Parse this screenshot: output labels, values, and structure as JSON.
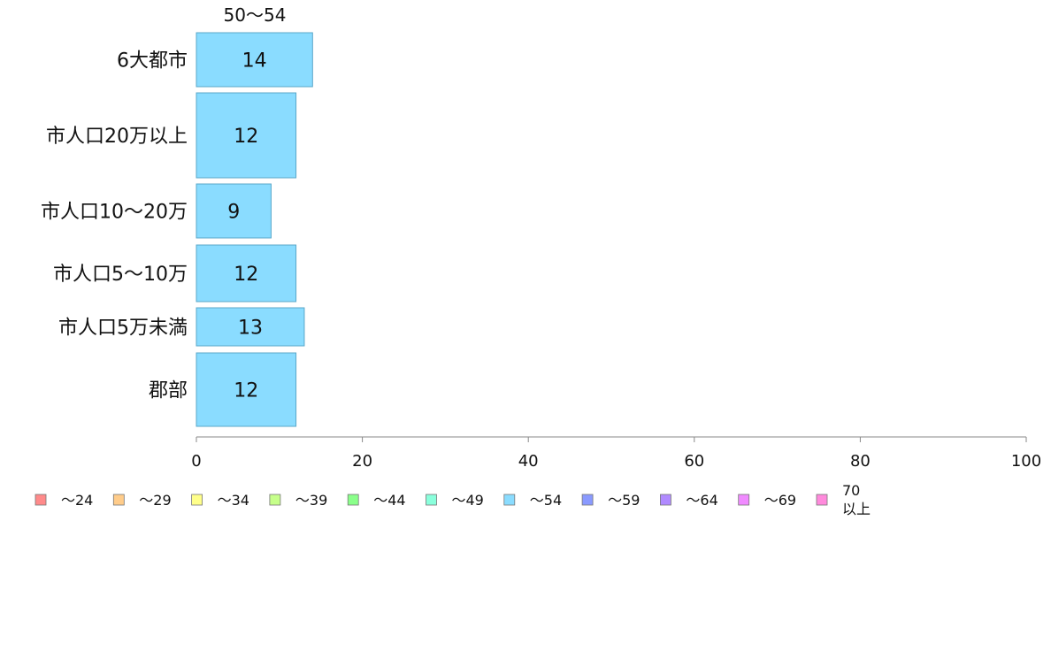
{
  "chart_data": {
    "type": "bar",
    "orientation": "horizontal",
    "title": "",
    "series_header": "50～54",
    "categories": [
      "6大都市",
      "市人口20万以上",
      "市人口10～20万",
      "市人口5～10万",
      "市人口5万未満",
      "郡部"
    ],
    "series": [
      {
        "name": "～54",
        "values": [
          14,
          12,
          9,
          12,
          13,
          12
        ],
        "color": "#8adcff"
      }
    ],
    "data_labels": [
      "14",
      "12",
      "9",
      "12",
      "13",
      "12"
    ],
    "xlim": [
      0,
      100
    ],
    "xticks": [
      0,
      20,
      40,
      60,
      80,
      100
    ],
    "xtick_labels": [
      "0",
      "20",
      "40",
      "60",
      "80",
      "100"
    ],
    "grid": false,
    "legend_position": "bottom",
    "legend": [
      {
        "label": "～24",
        "color": "#ff8a8a"
      },
      {
        "label": "～29",
        "color": "#ffcc8a"
      },
      {
        "label": "～34",
        "color": "#ffff8a"
      },
      {
        "label": "～39",
        "color": "#c6ff8a"
      },
      {
        "label": "～44",
        "color": "#8aff8a"
      },
      {
        "label": "～49",
        "color": "#8affdc"
      },
      {
        "label": "～54",
        "color": "#8adcff"
      },
      {
        "label": "～59",
        "color": "#8a9aff"
      },
      {
        "label": "～64",
        "color": "#b08aff"
      },
      {
        "label": "～69",
        "color": "#f08aff"
      },
      {
        "label": "70以上",
        "label_lines": [
          "70",
          "以上"
        ],
        "color": "#ff8adc"
      }
    ]
  }
}
